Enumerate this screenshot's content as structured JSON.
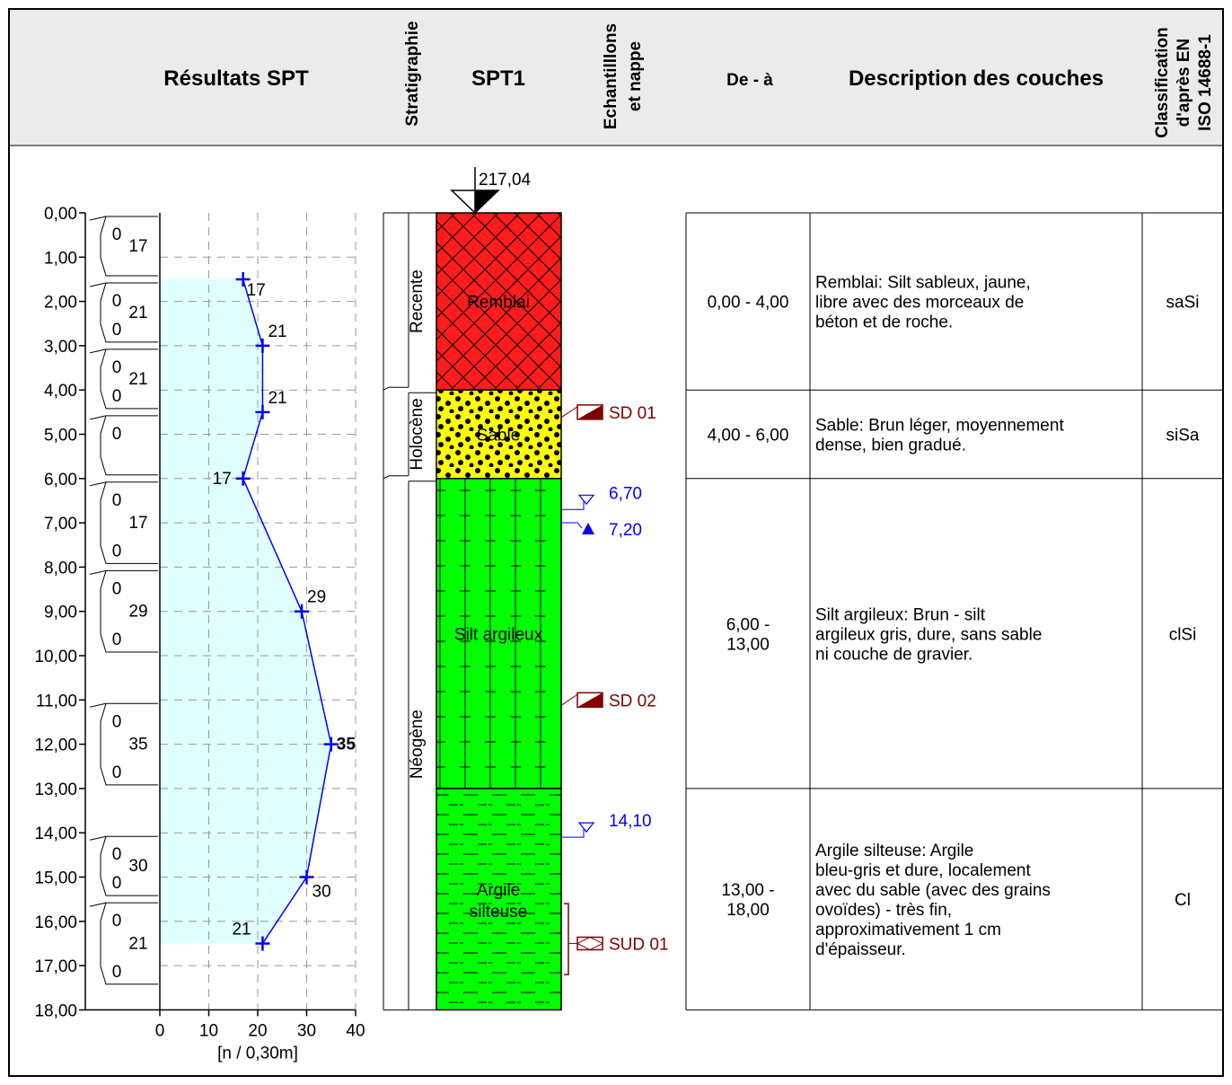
{
  "header": {
    "spt_results": "Résultats SPT",
    "stratigraphy": "Stratigraphie",
    "borehole": "SPT1",
    "samples_line1": "Echantilllons",
    "samples_line2": "et nappe",
    "depth_range": "De - à",
    "description": "Description des couches",
    "class_line1": "Classification",
    "class_line2": "d'après EN",
    "class_line3": "ISO 14688-1"
  },
  "elevation": "217,04",
  "depth_ticks": [
    "0,00",
    "1,00",
    "2,00",
    "3,00",
    "4,00",
    "5,00",
    "6,00",
    "7,00",
    "8,00",
    "9,00",
    "10,00",
    "11,00",
    "12,00",
    "13,00",
    "14,00",
    "15,00",
    "16,00",
    "17,00",
    "18,00"
  ],
  "spt_axis": {
    "ticks": [
      "0",
      "10",
      "20",
      "30",
      "40"
    ],
    "unit": "[n / 0,30m]",
    "xlim": [
      0,
      40
    ],
    "ylim": [
      0,
      18
    ]
  },
  "chart_data": {
    "type": "line",
    "x_label": "[n / 0,30m]",
    "y_reversed": true,
    "points": [
      {
        "depth": 1.5,
        "n": 17
      },
      {
        "depth": 3.0,
        "n": 21
      },
      {
        "depth": 4.5,
        "n": 21
      },
      {
        "depth": 6.0,
        "n": 17
      },
      {
        "depth": 9.0,
        "n": 29
      },
      {
        "depth": 12.0,
        "n": 35
      },
      {
        "depth": 15.0,
        "n": 30
      },
      {
        "depth": 16.5,
        "n": 21
      }
    ]
  },
  "point_labels": [
    "17",
    "21",
    "21",
    "17",
    "29",
    "35",
    "30",
    "21"
  ],
  "blow_tests": [
    {
      "top": 0,
      "bottom": 1.5,
      "a": "0",
      "total": "17",
      "b": ""
    },
    {
      "top": 1.5,
      "bottom": 3.0,
      "a": "0",
      "total": "21",
      "b": "0"
    },
    {
      "top": 3.0,
      "bottom": 4.5,
      "a": "0",
      "total": "21",
      "b": "0"
    },
    {
      "top": 4.5,
      "bottom": 6.0,
      "a": "0",
      "total": "",
      "b": ""
    },
    {
      "top": 6.0,
      "bottom": 8.0,
      "a": "0",
      "total": "17",
      "b": "0"
    },
    {
      "top": 8.0,
      "bottom": 10.0,
      "a": "0",
      "total": "29",
      "b": "0"
    },
    {
      "top": 11.0,
      "bottom": 13.0,
      "a": "0",
      "total": "35",
      "b": "0"
    },
    {
      "top": 14.0,
      "bottom": 15.5,
      "a": "0",
      "total": "30",
      "b": "0"
    },
    {
      "top": 15.5,
      "bottom": 17.5,
      "a": "0",
      "total": "21",
      "b": "0"
    }
  ],
  "stratigraphy": [
    {
      "name": "Recente",
      "top": 0,
      "bottom": 4
    },
    {
      "name": "Holocène",
      "top": 4,
      "bottom": 6
    },
    {
      "name": "Néogène",
      "top": 6,
      "bottom": 18
    }
  ],
  "layers": [
    {
      "name": "Remblai",
      "top": 0,
      "bottom": 4,
      "color": "#ff1c1c",
      "pattern": "cross",
      "range": "0,00 - 4,00",
      "description": "Remblai: Silt sableux, jaune, libre avec des morceaux de béton et de roche.",
      "class": "saSi"
    },
    {
      "name": "Sable",
      "top": 4,
      "bottom": 6,
      "color": "#ffff00",
      "pattern": "dots",
      "range": "4,00 - 6,00",
      "description": "Sable: Brun léger, moyennement dense, bien gradué.",
      "class": "siSa"
    },
    {
      "name": "Silt argileux",
      "top": 6,
      "bottom": 13,
      "color": "#00ff00",
      "pattern": "plus",
      "range": "6,00 - 13,00",
      "description": "Silt argileux: Brun - silt argileux gris, dure, sans sable ni couche de gravier.",
      "class": "clSi"
    },
    {
      "name": "Argile silteuse",
      "top": 13,
      "bottom": 18,
      "color": "#00ff00",
      "pattern": "dash",
      "range": "13,00 - 18,00",
      "description": "Argile silteuse: Argile bleu-gris et dure, localement avec du sable (avec des grains ovoïdes) - très fin, approximativement 1 cm d'épaisseur.",
      "class": "Cl"
    }
  ],
  "samples": [
    {
      "label": "SD 01",
      "depth": 4.5,
      "type": "disturbed"
    },
    {
      "label": "SD 02",
      "depth": 11.0,
      "type": "disturbed"
    },
    {
      "label": "SUD 01",
      "depth": 16.5,
      "type": "undisturbed"
    }
  ],
  "water": [
    {
      "label": "6,70",
      "depth": 6.7,
      "type": "encountered"
    },
    {
      "label": "7,20",
      "depth": 7.2,
      "type": "stabilized"
    },
    {
      "label": "14,10",
      "depth": 14.1,
      "type": "encountered"
    }
  ],
  "colors": {
    "curve": "#0000ff",
    "band": "#e0ffff",
    "sample": "#800000",
    "water": "#0000ff"
  }
}
